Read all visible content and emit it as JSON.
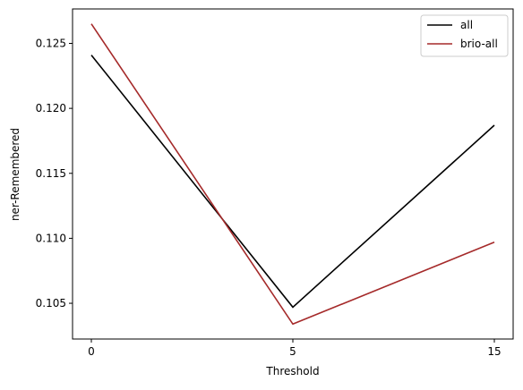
{
  "chart_data": {
    "type": "line",
    "title": "",
    "xlabel": "Threshold",
    "ylabel": "ner-Remembered",
    "categories": [
      "0",
      "5",
      "15"
    ],
    "series": [
      {
        "name": "all",
        "color": "#000000",
        "values": [
          0.1241,
          0.1047,
          0.1187
        ]
      },
      {
        "name": "brio-all",
        "color": "#a52a2a",
        "values": [
          0.1265,
          0.1034,
          0.1097
        ]
      }
    ],
    "yticks": [
      0.105,
      0.11,
      0.115,
      0.12,
      0.125
    ],
    "ytick_labels": [
      "0.105",
      "0.110",
      "0.115",
      "0.120",
      "0.125"
    ],
    "ylim": [
      0.10225,
      0.12765
    ],
    "grid": false,
    "legend": "top-right"
  }
}
